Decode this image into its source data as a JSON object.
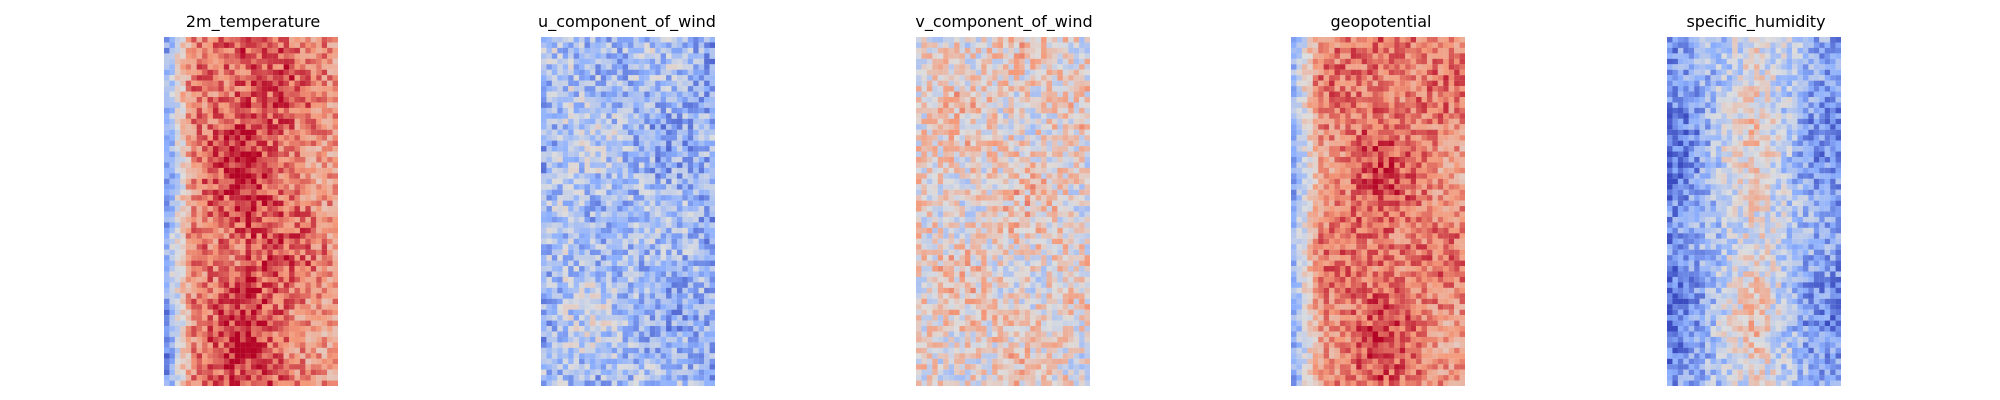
{
  "chart_data": [
    {
      "type": "heatmap",
      "title": "2m_temperature",
      "colormap": "coolwarm",
      "grid": false,
      "axes": "off",
      "rows": 64,
      "cols": 32,
      "band_profile": {
        "left_edge": -0.55,
        "left_mid": 0.55,
        "core": 0.82,
        "right_mid": 0.55,
        "right_edge": 0.45
      },
      "noise": 0.28,
      "seed": 11
    },
    {
      "type": "heatmap",
      "title": "u_component_of_wind",
      "colormap": "coolwarm",
      "grid": false,
      "axes": "off",
      "rows": 64,
      "cols": 32,
      "band_profile": {
        "left_edge": -0.4,
        "left_mid": -0.25,
        "core": -0.35,
        "right_mid": -0.4,
        "right_edge": -0.45
      },
      "noise": 0.38,
      "seed": 23
    },
    {
      "type": "heatmap",
      "title": "v_component_of_wind",
      "colormap": "coolwarm",
      "grid": false,
      "axes": "off",
      "rows": 64,
      "cols": 32,
      "band_profile": {
        "left_edge": 0.08,
        "left_mid": 0.1,
        "core": 0.12,
        "right_mid": 0.1,
        "right_edge": 0.06
      },
      "noise": 0.4,
      "seed": 37
    },
    {
      "type": "heatmap",
      "title": "geopotential",
      "colormap": "coolwarm",
      "grid": false,
      "axes": "off",
      "rows": 64,
      "cols": 32,
      "band_profile": {
        "left_edge": -0.45,
        "left_mid": 0.5,
        "core": 0.72,
        "right_mid": 0.55,
        "right_edge": 0.5
      },
      "noise": 0.26,
      "seed": 53
    },
    {
      "type": "heatmap",
      "title": "specific_humidity",
      "colormap": "coolwarm",
      "grid": false,
      "axes": "off",
      "rows": 64,
      "cols": 32,
      "band_profile": {
        "left_edge": -0.75,
        "left_mid": -0.55,
        "core": 0.15,
        "right_mid": -0.55,
        "right_edge": -0.6
      },
      "noise": 0.34,
      "seed": 71
    }
  ]
}
